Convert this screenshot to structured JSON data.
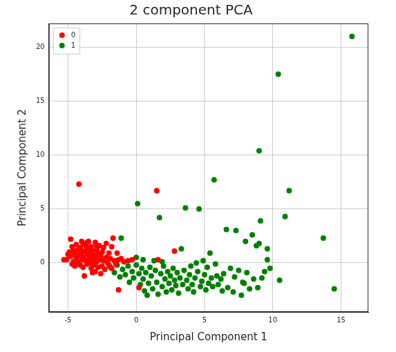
{
  "chart_data": {
    "type": "scatter",
    "title": "2 component PCA",
    "x_label": "Principal Component 1",
    "y_label": "Principal Component 2",
    "xlim": [
      -6.4,
      17
    ],
    "xticks": [
      -5,
      0,
      5,
      10,
      15
    ],
    "ylim": [
      -4.55,
      22.2
    ],
    "yticks": [
      0,
      5,
      10,
      15,
      20
    ],
    "grid": true,
    "legend": "upper left",
    "series": [
      {
        "name": "0",
        "color": "#ff0000",
        "marker": "circle",
        "values": [
          [
            -5.3,
            0.3
          ],
          [
            -5.1,
            0.3
          ],
          [
            -4.9,
            1.0
          ],
          [
            -4.8,
            0.6
          ],
          [
            -4.8,
            2.2
          ],
          [
            -4.7,
            1.5
          ],
          [
            -4.6,
            0.1
          ],
          [
            -4.6,
            1.1
          ],
          [
            -4.5,
            0.8
          ],
          [
            -4.5,
            -0.3
          ],
          [
            -4.4,
            1.7
          ],
          [
            -4.4,
            0.4
          ],
          [
            -4.3,
            1.2
          ],
          [
            -4.3,
            0.0
          ],
          [
            -4.2,
            0.7
          ],
          [
            -4.2,
            7.3
          ],
          [
            -4.1,
            1.4
          ],
          [
            -4.1,
            -0.2
          ],
          [
            -4.0,
            2.0
          ],
          [
            -4.0,
            0.9
          ],
          [
            -4.0,
            0.3
          ],
          [
            -3.9,
            1.8
          ],
          [
            -3.9,
            -0.4
          ],
          [
            -3.9,
            0.5
          ],
          [
            -3.8,
            1.1
          ],
          [
            -3.8,
            -1.2
          ],
          [
            -3.7,
            0.2
          ],
          [
            -3.7,
            1.6
          ],
          [
            -3.6,
            0.8
          ],
          [
            -3.6,
            -0.1
          ],
          [
            -3.5,
            1.3
          ],
          [
            -3.5,
            0.4
          ],
          [
            -3.5,
            2.0
          ],
          [
            -3.4,
            0.0
          ],
          [
            -3.4,
            0.9
          ],
          [
            -3.3,
            -0.5
          ],
          [
            -3.3,
            0.6
          ],
          [
            -3.3,
            1.5
          ],
          [
            -3.2,
            0.2
          ],
          [
            -3.2,
            1.1
          ],
          [
            -3.1,
            -0.2
          ],
          [
            -3.1,
            0.7
          ],
          [
            -3.0,
            1.9
          ],
          [
            -3.0,
            0.4
          ],
          [
            -3.0,
            -0.8
          ],
          [
            -2.9,
            1.2
          ],
          [
            -2.9,
            0.1
          ],
          [
            -2.8,
            0.8
          ],
          [
            -2.8,
            -0.4
          ],
          [
            -2.7,
            1.6
          ],
          [
            -2.7,
            0.3
          ],
          [
            -2.6,
            -1.0
          ],
          [
            -2.6,
            0.6
          ],
          [
            -2.5,
            1.0
          ],
          [
            -2.5,
            -0.3
          ],
          [
            -2.4,
            0.2
          ],
          [
            -2.4,
            1.4
          ],
          [
            -2.3,
            -0.6
          ],
          [
            -2.2,
            0.5
          ],
          [
            -2.2,
            1.8
          ],
          [
            -2.1,
            0.0
          ],
          [
            -2.0,
            0.9
          ],
          [
            -2.0,
            -0.2
          ],
          [
            -1.9,
            0.4
          ],
          [
            -1.8,
            1.5
          ],
          [
            -1.8,
            -0.5
          ],
          [
            -1.7,
            2.3
          ],
          [
            -1.6,
            0.2
          ],
          [
            -1.5,
            -0.1
          ],
          [
            -1.4,
            0.9
          ],
          [
            -1.3,
            -2.5
          ],
          [
            -1.3,
            0.3
          ],
          [
            -1.1,
            0.4
          ],
          [
            -0.9,
            0.1
          ],
          [
            -0.6,
            0.2
          ],
          [
            -0.3,
            0.3
          ],
          [
            0.2,
            -2.3
          ],
          [
            1.5,
            6.7
          ],
          [
            1.6,
            0.3
          ],
          [
            2.8,
            1.1
          ],
          [
            -5.0,
            0.8
          ],
          [
            -4.7,
            -0.1
          ],
          [
            -3.6,
            1.9
          ],
          [
            -3.2,
            -0.9
          ],
          [
            -2.9,
            1.6
          ]
        ]
      },
      {
        "name": "1",
        "color": "#008000",
        "marker": "circle",
        "values": [
          [
            -1.9,
            -0.4
          ],
          [
            -1.6,
            -0.9
          ],
          [
            -1.4,
            -0.2
          ],
          [
            -1.2,
            -1.3
          ],
          [
            -1.1,
            2.3
          ],
          [
            -1.0,
            -0.6
          ],
          [
            -0.8,
            -1.1
          ],
          [
            -0.6,
            -0.3
          ],
          [
            -0.5,
            -1.8
          ],
          [
            -0.3,
            -0.8
          ],
          [
            -0.2,
            -1.4
          ],
          [
            0.0,
            0.5
          ],
          [
            0.0,
            -0.2
          ],
          [
            0.1,
            5.5
          ],
          [
            0.2,
            -1.0
          ],
          [
            0.3,
            -2.0
          ],
          [
            0.4,
            -0.5
          ],
          [
            0.5,
            -1.5
          ],
          [
            0.6,
            -2.6
          ],
          [
            0.7,
            -0.9
          ],
          [
            0.8,
            -3.0
          ],
          [
            0.9,
            -1.9
          ],
          [
            1.0,
            -0.4
          ],
          [
            1.1,
            -1.2
          ],
          [
            1.2,
            -2.4
          ],
          [
            1.3,
            0.2
          ],
          [
            1.4,
            -0.7
          ],
          [
            1.5,
            -1.8
          ],
          [
            1.6,
            -2.9
          ],
          [
            1.7,
            4.2
          ],
          [
            1.8,
            -1.0
          ],
          [
            1.9,
            -2.2
          ],
          [
            2.0,
            -0.3
          ],
          [
            2.1,
            -1.5
          ],
          [
            2.2,
            -2.7
          ],
          [
            2.3,
            -0.8
          ],
          [
            2.4,
            -1.9
          ],
          [
            2.5,
            -1.2
          ],
          [
            2.6,
            -2.5
          ],
          [
            2.7,
            -0.5
          ],
          [
            2.8,
            -1.6
          ],
          [
            2.9,
            -2.1
          ],
          [
            3.0,
            -0.9
          ],
          [
            3.1,
            -2.8
          ],
          [
            3.2,
            -1.4
          ],
          [
            3.3,
            1.3
          ],
          [
            3.4,
            -2.0
          ],
          [
            3.5,
            -0.7
          ],
          [
            3.6,
            5.1
          ],
          [
            3.7,
            -1.6
          ],
          [
            3.8,
            -2.4
          ],
          [
            3.9,
            -1.1
          ],
          [
            4.0,
            -0.3
          ],
          [
            4.1,
            -2.0
          ],
          [
            4.2,
            -2.7
          ],
          [
            4.3,
            -1.4
          ],
          [
            4.5,
            -0.8
          ],
          [
            4.6,
            5.0
          ],
          [
            4.7,
            -2.2
          ],
          [
            4.8,
            -1.7
          ],
          [
            4.9,
            0.2
          ],
          [
            5.0,
            -1.1
          ],
          [
            5.1,
            -2.5
          ],
          [
            5.2,
            -0.4
          ],
          [
            5.3,
            -1.9
          ],
          [
            5.4,
            0.9
          ],
          [
            5.5,
            -1.4
          ],
          [
            5.6,
            -2.2
          ],
          [
            5.7,
            7.7
          ],
          [
            5.8,
            -0.1
          ],
          [
            5.9,
            -1.2
          ],
          [
            6.0,
            -2.0
          ],
          [
            6.2,
            -1.5
          ],
          [
            6.4,
            -1.0
          ],
          [
            6.6,
            3.1
          ],
          [
            6.7,
            -2.3
          ],
          [
            6.9,
            -0.5
          ],
          [
            7.1,
            -2.7
          ],
          [
            7.2,
            -1.3
          ],
          [
            7.3,
            3.0
          ],
          [
            7.5,
            -0.7
          ],
          [
            7.7,
            -3.0
          ],
          [
            7.8,
            -1.8
          ],
          [
            8.0,
            2.0
          ],
          [
            8.1,
            -0.9
          ],
          [
            8.3,
            -2.4
          ],
          [
            8.5,
            2.6
          ],
          [
            8.6,
            -1.5
          ],
          [
            8.8,
            1.6
          ],
          [
            8.9,
            -2.3
          ],
          [
            9.0,
            10.4
          ],
          [
            9.0,
            1.8
          ],
          [
            9.1,
            3.9
          ],
          [
            9.2,
            -1.4
          ],
          [
            9.4,
            -0.8
          ],
          [
            9.6,
            1.3
          ],
          [
            9.6,
            0.3
          ],
          [
            9.8,
            -0.5
          ],
          [
            10.4,
            17.5
          ],
          [
            10.5,
            -1.6
          ],
          [
            10.9,
            4.3
          ],
          [
            11.2,
            6.7
          ],
          [
            13.7,
            2.3
          ],
          [
            14.5,
            -2.4
          ],
          [
            15.8,
            21.0
          ],
          [
            0.5,
            0.3
          ],
          [
            1.9,
            0.1
          ],
          [
            4.4,
            0.0
          ],
          [
            7.9,
            -1.9
          ],
          [
            6.3,
            -2.6
          ]
        ]
      }
    ]
  }
}
